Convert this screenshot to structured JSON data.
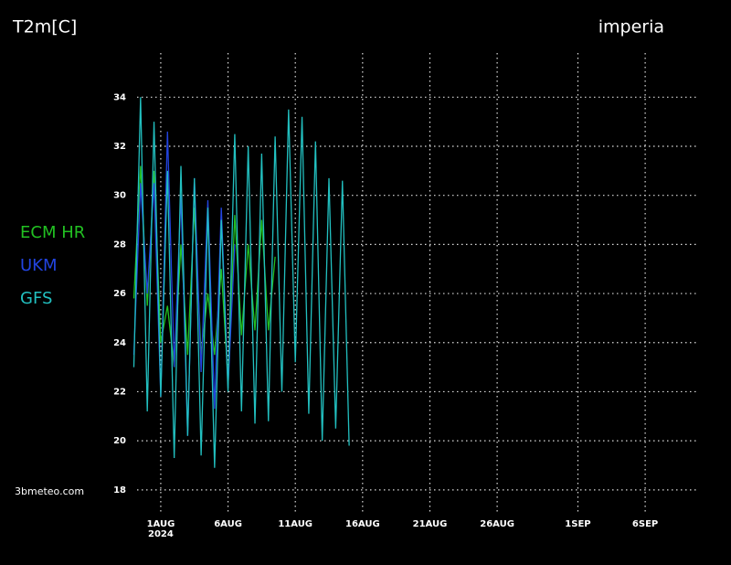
{
  "chart_data": {
    "type": "line",
    "title": "T2m[C]",
    "location": "imperia",
    "source": "3bmeteo.com",
    "year_label": "2024",
    "x": [
      -2,
      -1.5,
      -1,
      -0.5,
      0,
      0.5,
      1,
      1.5,
      2,
      2.5,
      3,
      3.5,
      4,
      4.5,
      5,
      5.5,
      6,
      6.5,
      7,
      7.5,
      8,
      8.5,
      9,
      9.5,
      10,
      10.5,
      11,
      11.5,
      12,
      12.5,
      13,
      13.5,
      14
    ],
    "series": [
      {
        "name": "ECM HR",
        "color": "#22c022",
        "values": [
          25.8,
          31.2,
          25.5,
          31,
          24,
          25.5,
          23,
          28,
          23.5,
          29.5,
          23.5,
          26,
          23.5,
          27,
          22.5,
          29.2,
          24.3,
          28,
          24.5,
          29,
          24.5,
          27.5,
          null,
          null,
          null,
          null,
          null,
          null,
          null,
          null,
          null,
          null,
          null
        ]
      },
      {
        "name": "UKM",
        "color": "#2244e0",
        "values": [
          23.5,
          30.5,
          26,
          30.5,
          21.8,
          32.6,
          23,
          30,
          20.2,
          30.7,
          22.8,
          29.8,
          21.3,
          29.5,
          22.2,
          28,
          null,
          null,
          null,
          null,
          null,
          null,
          null,
          null,
          null,
          null,
          null,
          null,
          null,
          null,
          null,
          null,
          null
        ]
      },
      {
        "name": "GFS",
        "color": "#22c0c0",
        "values": [
          23,
          34,
          21.2,
          33,
          21.8,
          31,
          19.3,
          31.2,
          20.2,
          30.7,
          19.4,
          29.5,
          18.9,
          29,
          22,
          32.5,
          21.2,
          32,
          20.7,
          31.7,
          20.8,
          32.4,
          22,
          33.5,
          23.2,
          33.2,
          21.1,
          32.2,
          20,
          30.7,
          20.5,
          30.6,
          19.8
        ]
      }
    ],
    "xlim": [
      -2.1,
      40
    ],
    "xticks": [
      {
        "value": 0,
        "label": "1AUG"
      },
      {
        "value": 5,
        "label": "6AUG"
      },
      {
        "value": 10,
        "label": "11AUG"
      },
      {
        "value": 15,
        "label": "16AUG"
      },
      {
        "value": 20,
        "label": "21AUG"
      },
      {
        "value": 25,
        "label": "26AUG"
      },
      {
        "value": 31,
        "label": "1SEP"
      },
      {
        "value": 36,
        "label": "6SEP"
      }
    ],
    "ylim": [
      17.1,
      35.8
    ],
    "yticks": [
      18,
      20,
      22,
      24,
      26,
      28,
      30,
      32,
      34
    ],
    "grid": true
  }
}
